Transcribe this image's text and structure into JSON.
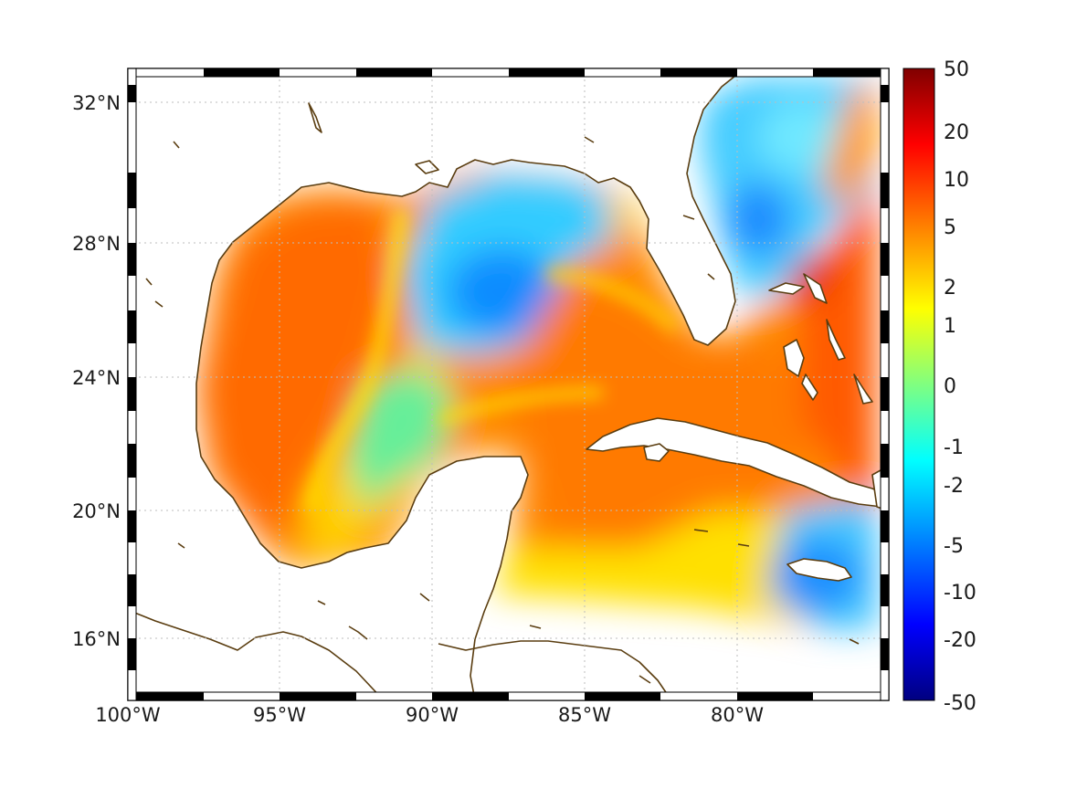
{
  "map": {
    "longitude_ticks": [
      "100°W",
      "95°W",
      "90°W",
      "85°W",
      "80°W"
    ],
    "latitude_ticks": [
      "32°N",
      "28°N",
      "24°N",
      "20°N",
      "16°N"
    ],
    "colorbar": {
      "tick_labels": [
        "50",
        "20",
        "10",
        "5",
        "2",
        "1",
        "0",
        "-1",
        "-2",
        "-5",
        "-10",
        "-20",
        "-50"
      ],
      "colors": [
        "#800000",
        "#ff0000",
        "#ff8000",
        "#ffff00",
        "#80ff80",
        "#00ffff",
        "#0080ff",
        "#0000ff",
        "#000080"
      ],
      "scale": "nonlinear"
    },
    "frame_style": "alternating black and white border",
    "coastline_color": "#5a3d10"
  }
}
